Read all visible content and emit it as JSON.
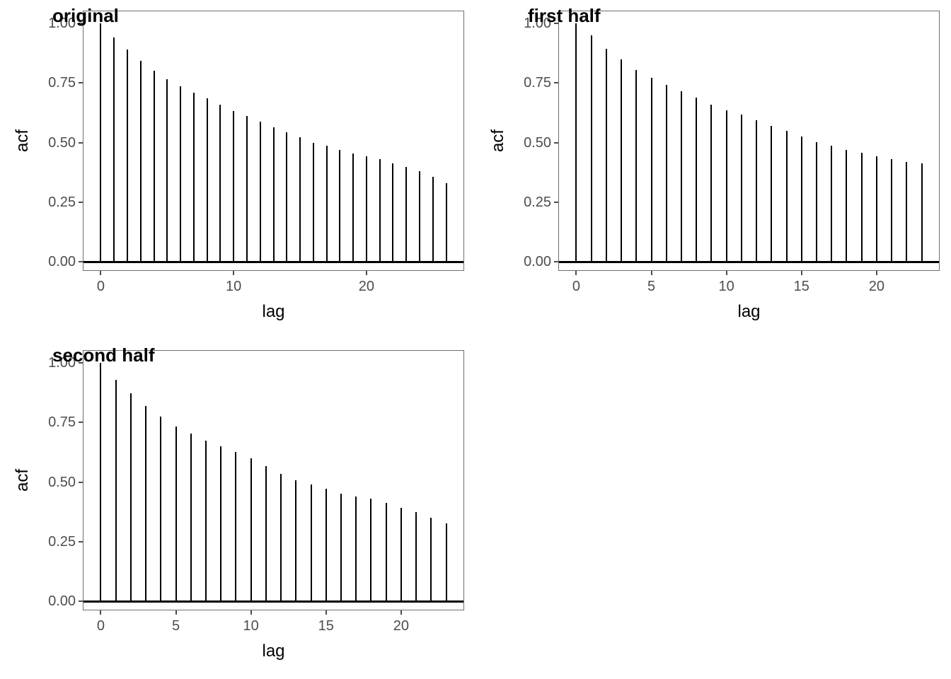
{
  "figure": {
    "background": "#ffffff",
    "grid": "2x2",
    "empty_cell": "bottom-right"
  },
  "colors": {
    "spike": "#000000",
    "zero_line": "#000000",
    "axis_title": "#000000",
    "panel_title": "#000000",
    "tick_text": "#4d4d4d",
    "tick_mark": "#4d4d4d",
    "panel_border": "#6e6e6e"
  },
  "chart_data": [
    {
      "type": "bar",
      "subtype": "acf-spikes",
      "title": "original",
      "xlabel": "lag",
      "ylabel": "acf",
      "grid": false,
      "legend": false,
      "panel_border": true,
      "x": [
        0,
        1,
        2,
        3,
        4,
        5,
        6,
        7,
        8,
        9,
        10,
        11,
        12,
        13,
        14,
        15,
        16,
        17,
        18,
        19,
        20,
        21,
        22,
        23,
        24,
        25,
        26
      ],
      "values": [
        1.0,
        0.94,
        0.89,
        0.843,
        0.8,
        0.764,
        0.735,
        0.71,
        0.685,
        0.658,
        0.633,
        0.61,
        0.588,
        0.565,
        0.544,
        0.521,
        0.5,
        0.488,
        0.469,
        0.455,
        0.441,
        0.429,
        0.412,
        0.398,
        0.381,
        0.355,
        0.33
      ],
      "x_ticks": [
        0,
        10,
        20
      ],
      "y_tick_labels": [
        "0.00",
        "0.25",
        "0.50",
        "0.75",
        "1.00"
      ],
      "y_tick_values": [
        0,
        0.25,
        0.5,
        0.75,
        1
      ],
      "xlim": [
        -1.3,
        27.3
      ],
      "ylim": [
        -0.035,
        1.05
      ],
      "zero_line": 0
    },
    {
      "type": "bar",
      "subtype": "acf-spikes",
      "title": "first half",
      "xlabel": "lag",
      "ylabel": "acf",
      "grid": false,
      "legend": false,
      "panel_border": true,
      "x": [
        0,
        1,
        2,
        3,
        4,
        5,
        6,
        7,
        8,
        9,
        10,
        11,
        12,
        13,
        14,
        15,
        16,
        17,
        18,
        19,
        20,
        21,
        22,
        23
      ],
      "values": [
        1.0,
        0.948,
        0.893,
        0.847,
        0.805,
        0.77,
        0.743,
        0.716,
        0.689,
        0.66,
        0.635,
        0.617,
        0.593,
        0.571,
        0.55,
        0.524,
        0.502,
        0.486,
        0.47,
        0.458,
        0.443,
        0.431,
        0.42,
        0.414
      ],
      "x_ticks": [
        0,
        5,
        10,
        15,
        20
      ],
      "y_tick_labels": [
        "0.00",
        "0.25",
        "0.50",
        "0.75",
        "1.00"
      ],
      "y_tick_values": [
        0,
        0.25,
        0.5,
        0.75,
        1
      ],
      "xlim": [
        -1.15,
        24.15
      ],
      "ylim": [
        -0.035,
        1.05
      ],
      "zero_line": 0
    },
    {
      "type": "bar",
      "subtype": "acf-spikes",
      "title": "second half",
      "xlabel": "lag",
      "ylabel": "acf",
      "grid": false,
      "legend": false,
      "panel_border": true,
      "x": [
        0,
        1,
        2,
        3,
        4,
        5,
        6,
        7,
        8,
        9,
        10,
        11,
        12,
        13,
        14,
        15,
        16,
        17,
        18,
        19,
        20,
        21,
        22,
        23
      ],
      "values": [
        1.0,
        0.928,
        0.873,
        0.82,
        0.774,
        0.732,
        0.704,
        0.674,
        0.65,
        0.627,
        0.599,
        0.568,
        0.535,
        0.507,
        0.49,
        0.472,
        0.451,
        0.438,
        0.43,
        0.414,
        0.393,
        0.374,
        0.351,
        0.327
      ],
      "x_ticks": [
        0,
        5,
        10,
        15,
        20
      ],
      "y_tick_labels": [
        "0.00",
        "0.25",
        "0.50",
        "0.75",
        "1.00"
      ],
      "y_tick_values": [
        0,
        0.25,
        0.5,
        0.75,
        1
      ],
      "xlim": [
        -1.15,
        24.15
      ],
      "ylim": [
        -0.035,
        1.05
      ],
      "zero_line": 0
    }
  ]
}
